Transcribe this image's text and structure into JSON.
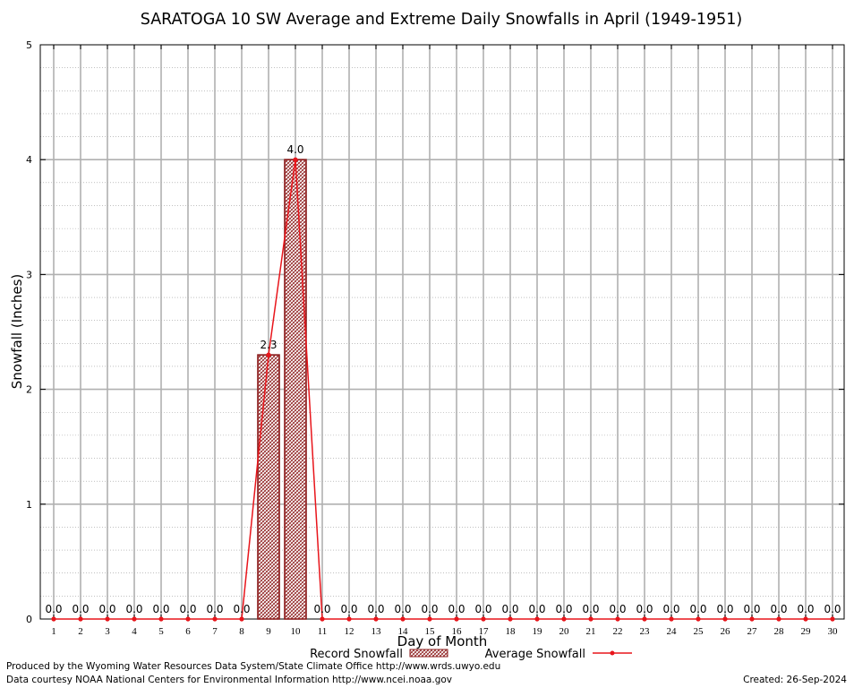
{
  "chart_data": {
    "type": "bar",
    "title": "SARATOGA 10 SW Average and Extreme Daily Snowfalls in April (1949-1951)",
    "xlabel": "Day of Month",
    "ylabel": "Snowfall (Inches)",
    "ylim": [
      0,
      5
    ],
    "yticks": [
      "0",
      "1",
      "2",
      "3",
      "4",
      "5"
    ],
    "categories": [
      "1",
      "2",
      "3",
      "4",
      "5",
      "6",
      "7",
      "8",
      "9",
      "10",
      "11",
      "12",
      "13",
      "14",
      "15",
      "16",
      "17",
      "18",
      "19",
      "20",
      "21",
      "22",
      "23",
      "24",
      "25",
      "26",
      "27",
      "28",
      "29",
      "30"
    ],
    "series": [
      {
        "name": "Record Snowfall",
        "kind": "bar",
        "values": [
          0,
          0,
          0,
          0,
          0,
          0,
          0,
          0,
          2.3,
          4.0,
          0,
          0,
          0,
          0,
          0,
          0,
          0,
          0,
          0,
          0,
          0,
          0,
          0,
          0,
          0,
          0,
          0,
          0,
          0,
          0
        ],
        "labels": [
          "0.0",
          "0.0",
          "0.0",
          "0.0",
          "0.0",
          "0.0",
          "0.0",
          "0.0",
          "2.3",
          "4.0",
          "0.0",
          "0.0",
          "0.0",
          "0.0",
          "0.0",
          "0.0",
          "0.0",
          "0.0",
          "0.0",
          "0.0",
          "0.0",
          "0.0",
          "0.0",
          "0.0",
          "0.0",
          "0.0",
          "0.0",
          "0.0",
          "0.0",
          "0.0"
        ],
        "color": "#8b1a1a"
      },
      {
        "name": "Average Snowfall",
        "kind": "line",
        "values": [
          0,
          0,
          0,
          0,
          0,
          0,
          0,
          0,
          2.3,
          4.0,
          0,
          0,
          0,
          0,
          0,
          0,
          0,
          0,
          0,
          0,
          0,
          0,
          0,
          0,
          0,
          0,
          0,
          0,
          0,
          0
        ],
        "color": "#e8151b"
      }
    ],
    "grid": true,
    "legend_position": "bottom-center"
  },
  "footer": {
    "produced_by": "Produced by the Wyoming Water Resources Data System/State Climate Office http://www.wrds.uwyo.edu",
    "data_courtesy": "Data courtesy NOAA National Centers for Environmental Information http://www.ncei.noaa.gov",
    "created": "Created:  26-Sep-2024"
  }
}
